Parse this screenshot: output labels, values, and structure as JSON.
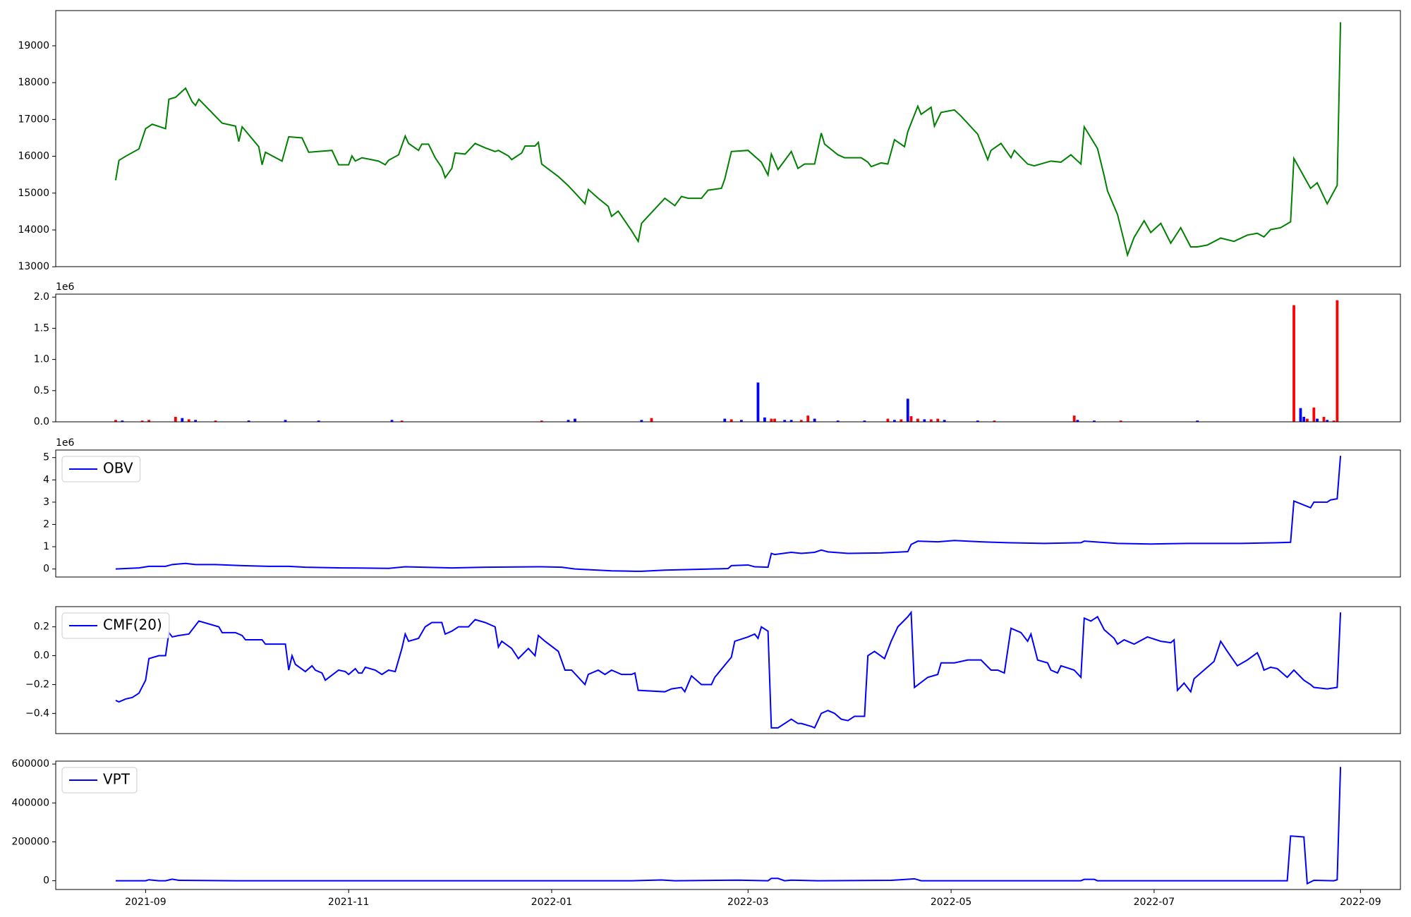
{
  "chart_data": [
    {
      "type": "line",
      "color": "#008000",
      "xlim": [
        18844,
        19248
      ],
      "ylim": [
        13004,
        19956
      ],
      "yticks": [
        13000,
        14000,
        15000,
        16000,
        17000,
        18000,
        19000
      ],
      "x": [
        18862,
        18863,
        18865,
        18869,
        18871,
        18873,
        18877,
        18878,
        18880,
        18883,
        18885,
        18886,
        18887,
        18894,
        18898,
        18899,
        18900,
        18905,
        18906,
        18907,
        18912,
        18914,
        18918,
        18920,
        18927,
        18929,
        18932,
        18933,
        18934,
        18936,
        18941,
        18943,
        18944,
        18947,
        18949,
        18950,
        18953,
        18954,
        18956,
        18958,
        18960,
        18961,
        18963,
        18964,
        18967,
        18970,
        18973,
        18976,
        18977,
        18980,
        18981,
        18984,
        18985,
        18988,
        18989,
        18990,
        18995,
        18998,
        19001,
        19003,
        19004,
        19007,
        19010,
        19011,
        19013,
        19017,
        19019,
        19020,
        19027,
        19030,
        19032,
        19034,
        19038,
        19040,
        19044,
        19045,
        19047,
        19052,
        19056,
        19058,
        19059,
        19061,
        19065,
        19067,
        19069,
        19072,
        19074,
        19075,
        19079,
        19081,
        19086,
        19088,
        19089,
        19092,
        19094,
        19096,
        19099,
        19100,
        19103,
        19104,
        19107,
        19108,
        19110,
        19114,
        19116,
        19121,
        19124,
        19125,
        19128,
        19131,
        19132,
        19136,
        19138,
        19143,
        19146,
        19149,
        19152,
        19153,
        19157,
        19159,
        19160,
        19163,
        19165,
        19166,
        19168,
        19171,
        19173,
        19176,
        19179,
        19182,
        19185,
        19187,
        19190,
        19194,
        19198,
        19202,
        19205,
        19207,
        19209,
        19212,
        19215,
        19216,
        19221,
        19223,
        19226,
        19229,
        19230
      ],
      "values": [
        15350,
        15890,
        16000,
        16200,
        16750,
        16870,
        16750,
        17550,
        17600,
        17850,
        17480,
        17380,
        17550,
        16900,
        16820,
        16400,
        16800,
        16260,
        15770,
        16110,
        15870,
        16530,
        16500,
        16110,
        16160,
        15770,
        15770,
        16010,
        15870,
        15960,
        15870,
        15770,
        15890,
        16040,
        16550,
        16350,
        16160,
        16330,
        16330,
        15960,
        15690,
        15420,
        15670,
        16090,
        16060,
        16350,
        16230,
        16130,
        16160,
        16010,
        15910,
        16090,
        16280,
        16280,
        16380,
        15790,
        15450,
        15200,
        14910,
        14710,
        15100,
        14860,
        14640,
        14370,
        14510,
        13980,
        13690,
        14180,
        14860,
        14660,
        14910,
        14860,
        14860,
        15080,
        15130,
        15380,
        16130,
        16160,
        15840,
        15490,
        16060,
        15640,
        16130,
        15670,
        15790,
        15790,
        16630,
        16330,
        16040,
        15960,
        15960,
        15840,
        15720,
        15820,
        15790,
        16450,
        16260,
        16670,
        17360,
        17140,
        17330,
        16820,
        17190,
        17260,
        17090,
        16600,
        15910,
        16160,
        16350,
        15960,
        16160,
        15790,
        15740,
        15870,
        15840,
        16040,
        15790,
        16800,
        16210,
        15470,
        15060,
        14420,
        13690,
        13320,
        13800,
        14250,
        13930,
        14180,
        13640,
        14060,
        13540,
        13540,
        13590,
        13780,
        13690,
        13860,
        13910,
        13810,
        14010,
        14060,
        14220,
        15940,
        15130,
        15280,
        14710,
        15210,
        19640
      ]
    },
    {
      "type": "bar",
      "xlim": [
        18844,
        19248
      ],
      "ylim": [
        0,
        2047500
      ],
      "y_offset_text": "1e6",
      "yticks": [
        {
          "value": 0,
          "label": "0.0"
        },
        {
          "value": 500000,
          "label": "0.5"
        },
        {
          "value": 1000000,
          "label": "1.0"
        },
        {
          "value": 1500000,
          "label": "1.5"
        },
        {
          "value": 2000000,
          "label": "2.0"
        }
      ],
      "x": [
        18862,
        18864,
        18870,
        18872,
        18880,
        18882,
        18884,
        18886,
        18892,
        18902,
        18913,
        18923,
        18945,
        18948,
        18990,
        18998,
        19000,
        19020,
        19023,
        19045,
        19047,
        19050,
        19055,
        19057,
        19059,
        19060,
        19063,
        19065,
        19068,
        19070,
        19072,
        19079,
        19087,
        19094,
        19096,
        19098,
        19100,
        19101,
        19103,
        19105,
        19107,
        19109,
        19111,
        19121,
        19126,
        19150,
        19151,
        19156,
        19164,
        19187,
        19216,
        19218,
        19219,
        19220,
        19222,
        19223,
        19225,
        19226,
        19228,
        19229
      ],
      "values": [
        30000,
        20000,
        20000,
        30000,
        80000,
        60000,
        40000,
        30000,
        20000,
        20000,
        30000,
        20000,
        30000,
        20000,
        20000,
        30000,
        50000,
        30000,
        60000,
        50000,
        40000,
        30000,
        630000,
        70000,
        50000,
        50000,
        30000,
        30000,
        30000,
        100000,
        50000,
        20000,
        20000,
        50000,
        30000,
        40000,
        370000,
        90000,
        50000,
        40000,
        40000,
        50000,
        30000,
        20000,
        20000,
        100000,
        30000,
        20000,
        20000,
        20000,
        1870000,
        220000,
        80000,
        50000,
        230000,
        50000,
        80000,
        30000,
        20000,
        1950000
      ],
      "colors": [
        "red",
        "blue",
        "red",
        "red",
        "red",
        "blue",
        "red",
        "blue",
        "red",
        "blue",
        "blue",
        "blue",
        "blue",
        "red",
        "red",
        "blue",
        "blue",
        "blue",
        "red",
        "blue",
        "red",
        "blue",
        "blue",
        "blue",
        "red",
        "red",
        "blue",
        "blue",
        "red",
        "red",
        "blue",
        "blue",
        "blue",
        "red",
        "blue",
        "red",
        "blue",
        "red",
        "red",
        "blue",
        "red",
        "red",
        "blue",
        "blue",
        "red",
        "red",
        "blue",
        "blue",
        "red",
        "blue",
        "red",
        "blue",
        "blue",
        "red",
        "red",
        "blue",
        "red",
        "blue",
        "red",
        "red"
      ]
    },
    {
      "type": "line",
      "xlim": [
        18844,
        19248
      ],
      "ylim": [
        -359000,
        5339000
      ],
      "y_offset_text": "1e6",
      "legend": "upper left",
      "yticks": [
        0,
        {
          "value": 1000000,
          "label": "1"
        },
        {
          "value": 2000000,
          "label": "2"
        },
        {
          "value": 3000000,
          "label": "3"
        },
        {
          "value": 4000000,
          "label": "4"
        },
        {
          "value": 5000000,
          "label": "5"
        }
      ],
      "x": [
        18862,
        18869,
        18872,
        18877,
        18879,
        18883,
        18886,
        18892,
        18900,
        18908,
        18914,
        18919,
        18930,
        18944,
        18949,
        18963,
        18973,
        18990,
        18996,
        19000,
        19011,
        19018,
        19020,
        19027,
        19041,
        19046,
        19047,
        19052,
        19054,
        19058,
        19059,
        19060,
        19065,
        19068,
        19072,
        19074,
        19076,
        19082,
        19092,
        19100,
        19101,
        19103,
        19109,
        19114,
        19122,
        19130,
        19141,
        19152,
        19153,
        19163,
        19173,
        19184,
        19200,
        19211,
        19215,
        19216,
        19221,
        19222,
        19226,
        19227,
        19229,
        19230
      ],
      "series": [
        {
          "name": "OBV",
          "color": "#0000ff",
          "values": [
            0,
            50000,
            120000,
            120000,
            200000,
            250000,
            200000,
            200000,
            150000,
            120000,
            120000,
            80000,
            50000,
            30000,
            100000,
            50000,
            80000,
            100000,
            80000,
            0,
            -80000,
            -100000,
            -100000,
            -50000,
            0,
            20000,
            150000,
            180000,
            100000,
            80000,
            700000,
            650000,
            750000,
            700000,
            750000,
            850000,
            770000,
            700000,
            720000,
            780000,
            1100000,
            1250000,
            1220000,
            1280000,
            1220000,
            1180000,
            1150000,
            1180000,
            1250000,
            1150000,
            1120000,
            1150000,
            1150000,
            1180000,
            1200000,
            3050000,
            2750000,
            3000000,
            3000000,
            3100000,
            3150000,
            5080000
          ]
        }
      ]
    },
    {
      "type": "line",
      "xlim": [
        18844,
        19248
      ],
      "ylim": [
        -0.54,
        0.34
      ],
      "legend": "upper left",
      "yticks": [
        {
          "value": -0.4,
          "label": "−0.4"
        },
        {
          "value": -0.2,
          "label": "−0.2"
        },
        {
          "value": 0,
          "label": "0.0"
        },
        0.2
      ],
      "x": [
        18862,
        18863,
        18865,
        18867,
        18869,
        18871,
        18872,
        18875,
        18877,
        18878,
        18879,
        18881,
        18884,
        18887,
        18893,
        18894,
        18898,
        18900,
        18901,
        18906,
        18907,
        18908,
        18913,
        18914,
        18915,
        18916,
        18919,
        18921,
        18922,
        18924,
        18925,
        18929,
        18931,
        18932,
        18934,
        18935,
        18936,
        18937,
        18940,
        18942,
        18944,
        18946,
        18948,
        18949,
        18950,
        18953,
        18955,
        18957,
        18960,
        18961,
        18963,
        18965,
        18968,
        18970,
        18973,
        18976,
        18977,
        18978,
        18981,
        18983,
        18986,
        18988,
        18989,
        18991,
        18995,
        18997,
        18999,
        19003,
        19004,
        19007,
        19009,
        19011,
        19014,
        19017,
        19018,
        19019,
        19027,
        19029,
        19032,
        19033,
        19035,
        19038,
        19041,
        19042,
        19047,
        19048,
        19052,
        19054,
        19055,
        19056,
        19058,
        19059,
        19061,
        19065,
        19067,
        19068,
        19071,
        19072,
        19074,
        19076,
        19078,
        19080,
        19082,
        19084,
        19087,
        19088,
        19090,
        19093,
        19095,
        19097,
        19100,
        19101,
        19102,
        19106,
        19109,
        19110,
        19114,
        19118,
        19122,
        19125,
        19127,
        19129,
        19131,
        19134,
        19136,
        19137,
        19139,
        19142,
        19143,
        19145,
        19146,
        19150,
        19152,
        19153,
        19155,
        19157,
        19159,
        19162,
        19163,
        19165,
        19168,
        19172,
        19176,
        19179,
        19180,
        19181,
        19183,
        19185,
        19186,
        19190,
        19192,
        19194,
        19196,
        19199,
        19202,
        19205,
        19206,
        19207,
        19209,
        19211,
        19214,
        19216,
        19219,
        19221,
        19222,
        19226,
        19229,
        19230
      ],
      "series": [
        {
          "name": "CMF(20)",
          "color": "#0000ff",
          "values": [
            -0.31,
            -0.32,
            -0.3,
            -0.29,
            -0.26,
            -0.17,
            -0.02,
            0.0,
            0.0,
            0.16,
            0.13,
            0.14,
            0.15,
            0.24,
            0.2,
            0.16,
            0.16,
            0.14,
            0.11,
            0.11,
            0.08,
            0.08,
            0.08,
            -0.1,
            0.0,
            -0.06,
            -0.11,
            -0.07,
            -0.1,
            -0.12,
            -0.17,
            -0.1,
            -0.11,
            -0.13,
            -0.09,
            -0.12,
            -0.12,
            -0.08,
            -0.1,
            -0.13,
            -0.1,
            -0.11,
            0.05,
            0.15,
            0.1,
            0.12,
            0.2,
            0.23,
            0.23,
            0.15,
            0.17,
            0.2,
            0.2,
            0.25,
            0.23,
            0.2,
            0.06,
            0.1,
            0.05,
            -0.02,
            0.05,
            0.0,
            0.14,
            0.1,
            0.03,
            -0.1,
            -0.1,
            -0.2,
            -0.13,
            -0.1,
            -0.13,
            -0.1,
            -0.13,
            -0.13,
            -0.12,
            -0.24,
            -0.25,
            -0.23,
            -0.22,
            -0.25,
            -0.14,
            -0.2,
            -0.2,
            -0.15,
            -0.01,
            0.1,
            0.13,
            0.15,
            0.12,
            0.2,
            0.17,
            -0.5,
            -0.5,
            -0.44,
            -0.47,
            -0.47,
            -0.49,
            -0.5,
            -0.4,
            -0.38,
            -0.4,
            -0.44,
            -0.45,
            -0.42,
            -0.42,
            0.0,
            0.03,
            -0.02,
            0.1,
            0.2,
            0.27,
            0.3,
            -0.22,
            -0.15,
            -0.13,
            -0.05,
            -0.05,
            -0.03,
            -0.03,
            -0.1,
            -0.1,
            -0.12,
            0.19,
            0.16,
            0.1,
            0.15,
            -0.03,
            -0.05,
            -0.1,
            -0.12,
            -0.07,
            -0.1,
            -0.15,
            0.26,
            0.24,
            0.27,
            0.18,
            0.12,
            0.08,
            0.11,
            0.08,
            0.13,
            0.1,
            0.09,
            0.11,
            -0.24,
            -0.19,
            -0.25,
            -0.16,
            -0.08,
            -0.04,
            0.1,
            0.03,
            -0.07,
            -0.03,
            0.02,
            -0.03,
            -0.1,
            -0.08,
            -0.09,
            -0.15,
            -0.1,
            -0.17,
            -0.2,
            -0.22,
            -0.23,
            -0.22,
            0.3
          ]
        }
      ]
    },
    {
      "type": "line",
      "xlim": [
        18844,
        19248
      ],
      "ylim": [
        -45000,
        615000
      ],
      "legend": "upper left",
      "yticks": [
        0,
        200000,
        400000,
        600000
      ],
      "xticks": [
        {
          "value": 18871,
          "label": "2021-09"
        },
        {
          "value": 18932,
          "label": "2021-11"
        },
        {
          "value": 18993,
          "label": "2022-01"
        },
        {
          "value": 19052,
          "label": "2022-03"
        },
        {
          "value": 19113,
          "label": "2022-05"
        },
        {
          "value": 19174,
          "label": "2022-07"
        },
        {
          "value": 19236,
          "label": "2022-09"
        }
      ],
      "x": [
        18862,
        18871,
        18872,
        18875,
        18877,
        18879,
        18881,
        18898,
        18936,
        19017,
        19026,
        19030,
        19049,
        19058,
        19059,
        19061,
        19063,
        19065,
        19073,
        19095,
        19102,
        19104,
        19122,
        19152,
        19153,
        19156,
        19157,
        19179,
        19214,
        19215,
        19219,
        19220,
        19222,
        19228,
        19229,
        19230
      ],
      "series": [
        {
          "name": "VPT",
          "color": "#0000ff",
          "values": [
            0,
            0,
            5000,
            0,
            0,
            8000,
            2000,
            0,
            0,
            0,
            4000,
            0,
            3000,
            0,
            12000,
            12000,
            0,
            3000,
            0,
            2000,
            10000,
            0,
            0,
            0,
            7000,
            7000,
            0,
            0,
            0,
            230000,
            225000,
            -15000,
            2000,
            0,
            5000,
            585000
          ]
        }
      ]
    }
  ]
}
